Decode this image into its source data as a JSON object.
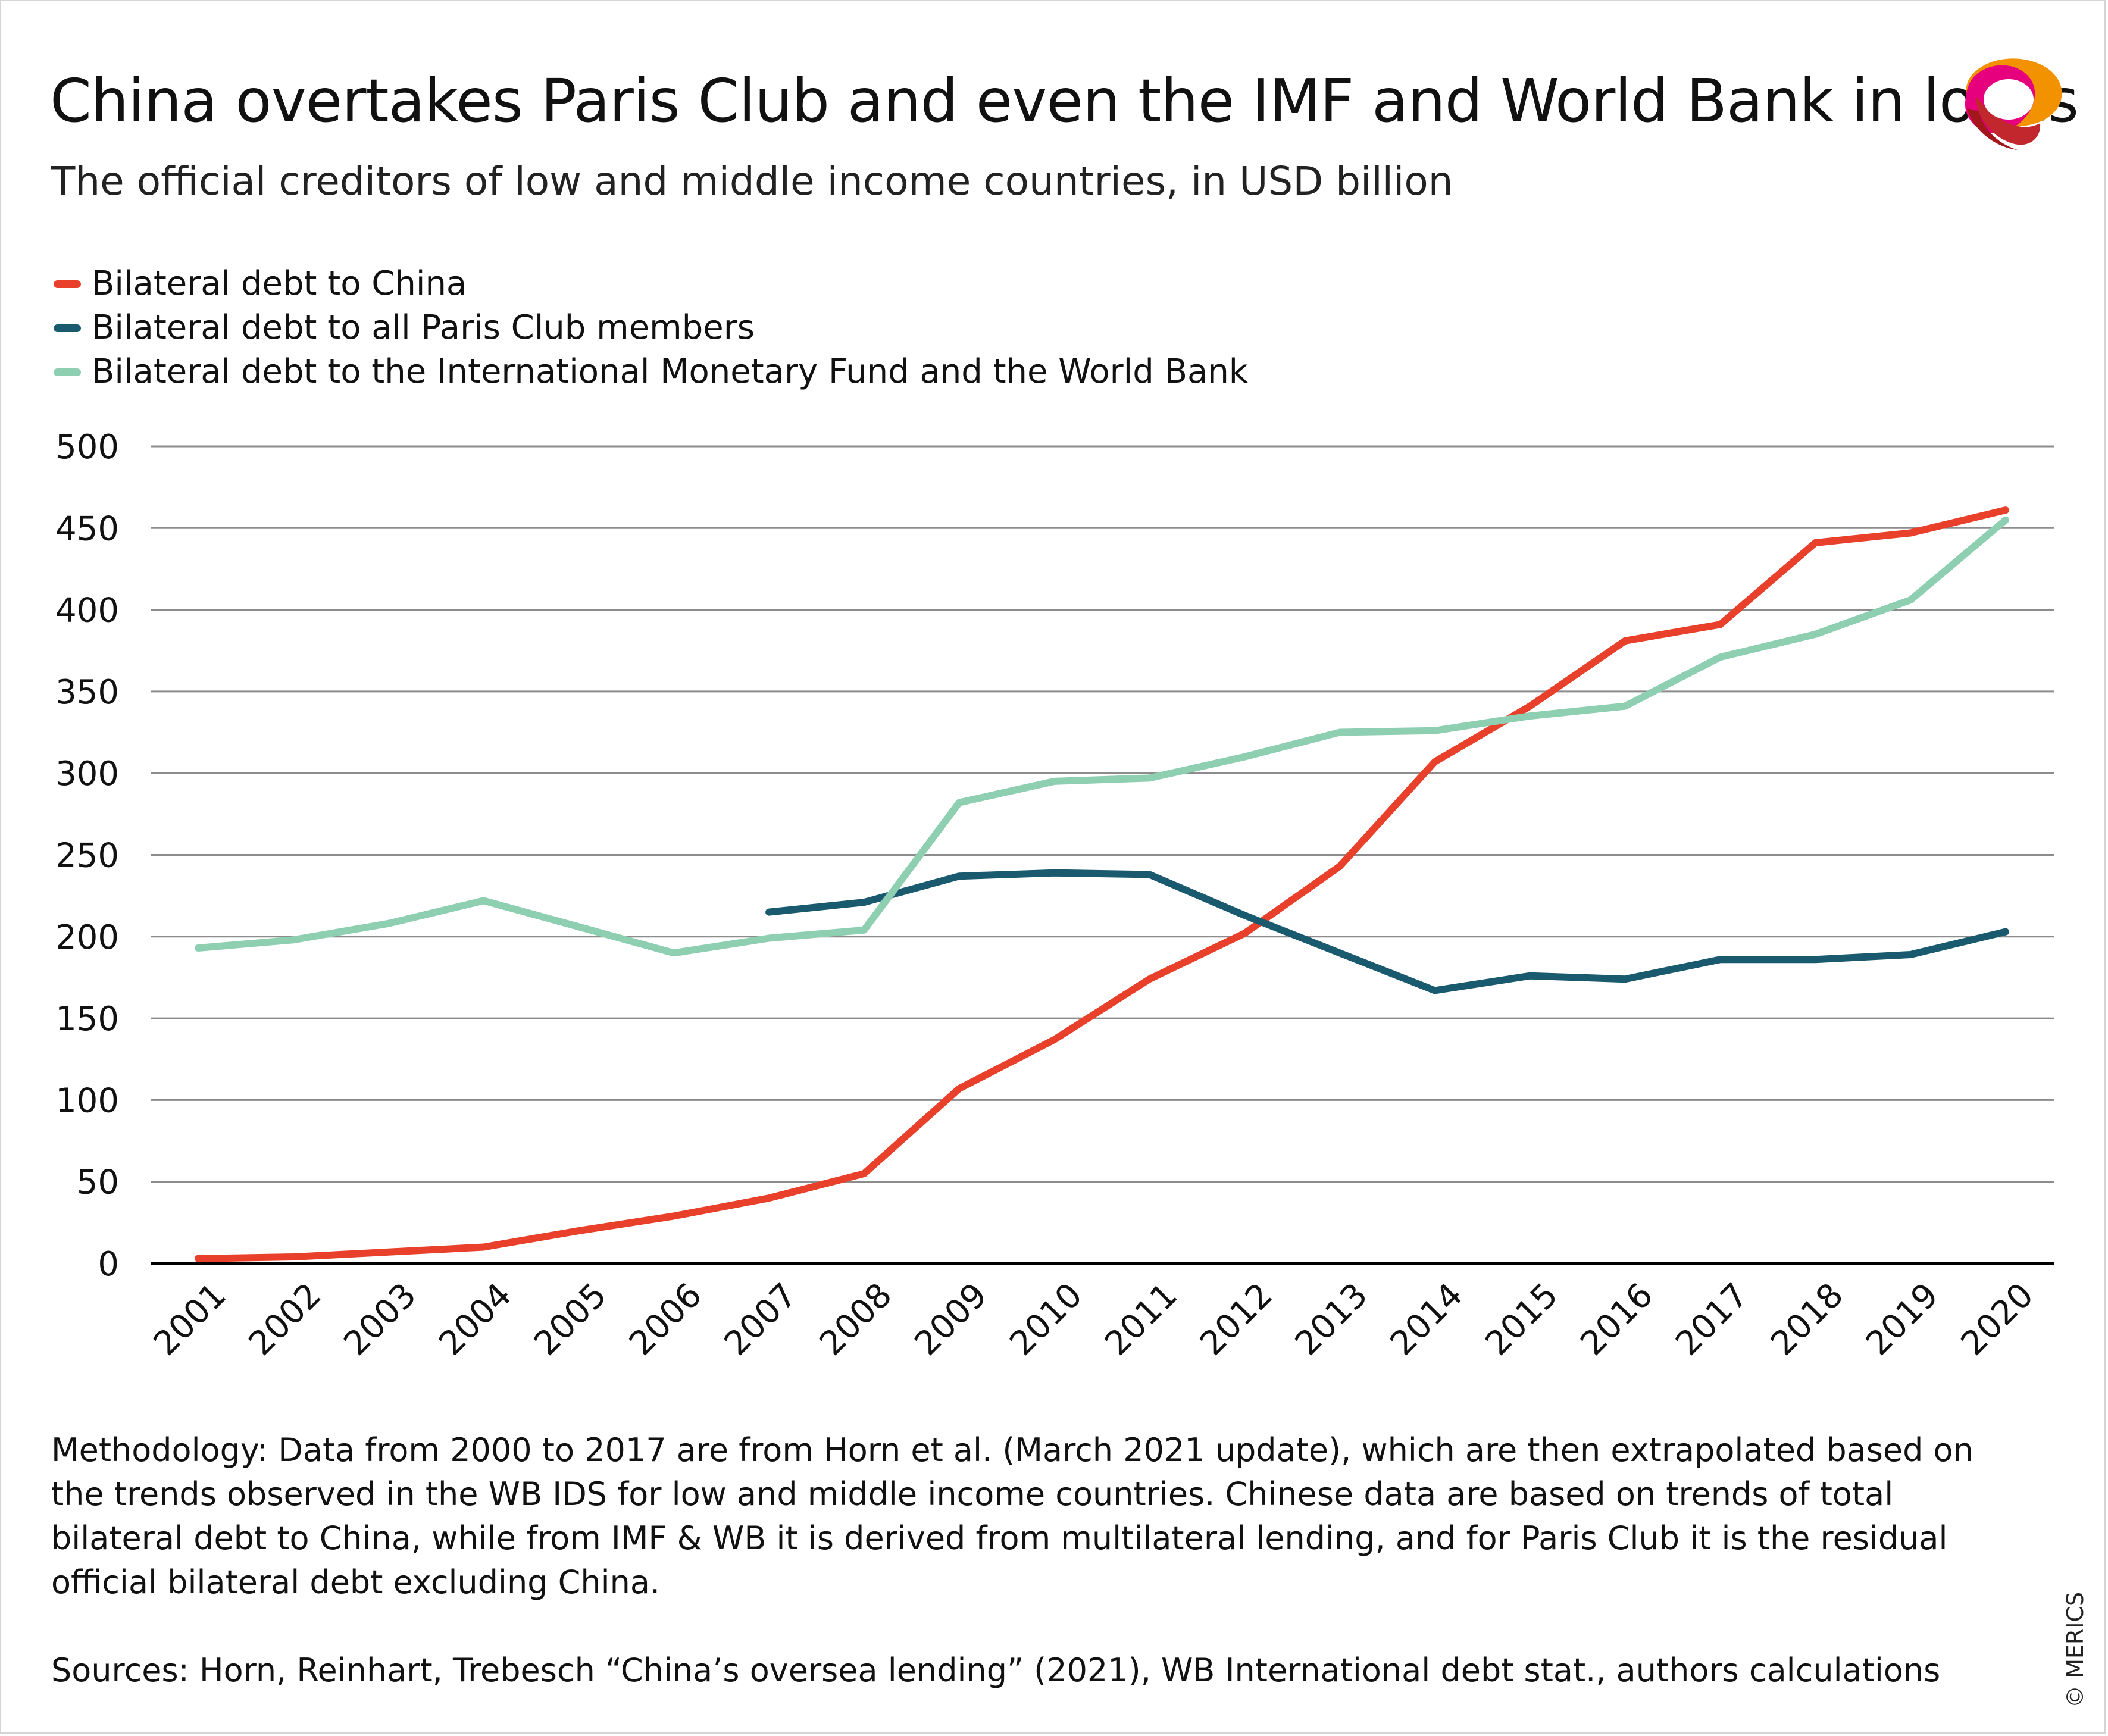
{
  "header": {
    "title": "China overtakes Paris Club and even the IMF and World Bank in loans",
    "subtitle": "The official creditors of low and middle income countries, in USD billion"
  },
  "logo": {
    "icon": "merics-logo-icon"
  },
  "chart_data": {
    "type": "line",
    "x": [
      "2001",
      "2002",
      "2003",
      "2004",
      "2005",
      "2006",
      "2007",
      "2008",
      "2009",
      "2010",
      "2011",
      "2012",
      "2013",
      "2014",
      "2015",
      "2016",
      "2017",
      "2018",
      "2019",
      "2020"
    ],
    "ylim": [
      0,
      500
    ],
    "yticks": [
      "0",
      "50",
      "100",
      "150",
      "200",
      "250",
      "300",
      "350",
      "400",
      "450",
      "500"
    ],
    "grid": true,
    "legend_position": "top-left",
    "series": [
      {
        "name": "Bilateral debt to China",
        "color": "#e8402a",
        "values": [
          3,
          4,
          7,
          10,
          20,
          29,
          40,
          55,
          107,
          137,
          174,
          202,
          243,
          307,
          341,
          381,
          391,
          441,
          447,
          461
        ]
      },
      {
        "name": "Bilateral debt to all Paris Club members",
        "color": "#1a5a6e",
        "values": [
          null,
          null,
          null,
          null,
          null,
          null,
          215,
          221,
          237,
          239,
          238,
          213,
          190,
          167,
          176,
          174,
          186,
          186,
          189,
          203
        ]
      },
      {
        "name": "Bilateral debt to the International Monetary Fund and the World Bank",
        "color": "#8ecfb2",
        "values": [
          193,
          198,
          208,
          222,
          206,
          190,
          199,
          204,
          282,
          295,
          297,
          310,
          325,
          326,
          335,
          341,
          371,
          385,
          406,
          455
        ]
      }
    ]
  },
  "footer": {
    "methodology": "Methodology: Data from 2000 to 2017  are from Horn et al. (March 2021 update), which are then extrapolated based on the trends observed in the WB IDS for low and middle income countries. Chinese data are based on trends of total bilateral debt to China, while from IMF & WB it is derived from multilateral lending, and for Paris Club it is the residual official bilateral debt excluding China.",
    "sources": "Sources: Horn, Reinhart, Trebesch “China’s oversea lending” (2021), WB International debt stat., authors calculations",
    "copyright": "© MERICS"
  }
}
